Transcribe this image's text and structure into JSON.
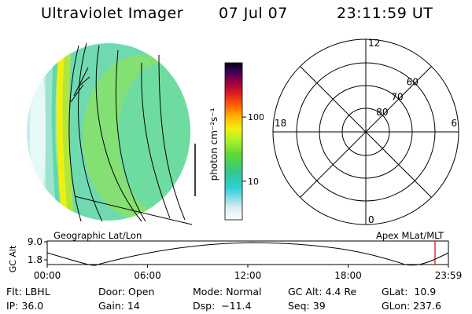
{
  "header": {
    "title": "Ultraviolet Imager",
    "date": "07 Jul 07",
    "time": "23:11:59 UT"
  },
  "colorbar": {
    "unit_label": "photon cm⁻²s⁻¹",
    "ticks": [
      {
        "value": 10,
        "label": "10"
      },
      {
        "value": 100,
        "label": "100"
      }
    ],
    "scale": "log",
    "range": [
      2.5,
      700
    ]
  },
  "polar_plot": {
    "mlt_labels": [
      {
        "mlt": 12,
        "label": "12"
      },
      {
        "mlt": 18,
        "label": "18"
      },
      {
        "mlt": 6,
        "label": "6"
      },
      {
        "mlt": 0,
        "label": "0"
      }
    ],
    "lat_labels": [
      {
        "mlat": 60,
        "label": "60"
      },
      {
        "mlat": 70,
        "label": "70"
      },
      {
        "mlat": 80,
        "label": "80"
      }
    ],
    "caption": "Apex MLat/MLT"
  },
  "image_caption": "Geographic Lat/Lon",
  "orbit": {
    "ylabel": "GC Alt",
    "yticks": [
      "9.0",
      "1.8"
    ],
    "ylim": [
      1.8,
      9.0
    ],
    "xticks": [
      "00:00",
      "06:00",
      "12:00",
      "18:00",
      "23:59"
    ],
    "current_time_hours": 23.2,
    "marker_color": "#dd0000"
  },
  "status": {
    "flt": "Flt: LBHL",
    "ip": "IP: 36.0",
    "door": "Door: Open",
    "gain": "Gain: 14",
    "mode": "Mode: Normal",
    "dsp": "Dsp:  −11.4",
    "gc_alt": "GC Alt: 4.4 Re",
    "seq": "Seq: 39",
    "glat": "GLat:  10.9",
    "glon": "GLon: 237.6"
  }
}
